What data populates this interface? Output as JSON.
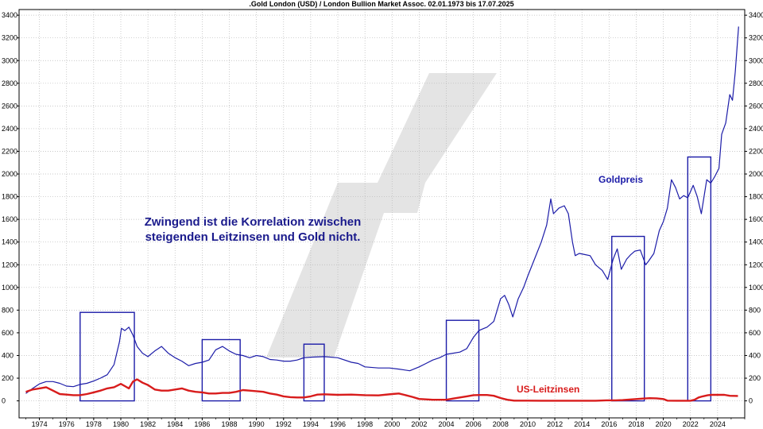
{
  "chart_data": {
    "type": "line",
    "title": ".Gold London (USD) / London Bullion Market Assoc. 02.01.1973 bis 17.07.2025",
    "xlim": [
      1972.5,
      2026.0
    ],
    "ylim": [
      -150,
      3450
    ],
    "yticks": [
      0,
      200,
      400,
      600,
      800,
      1000,
      1200,
      1400,
      1600,
      1800,
      2000,
      2200,
      2400,
      2600,
      2800,
      3000,
      3200,
      3400
    ],
    "xticks": [
      1974,
      1976,
      1978,
      1980,
      1982,
      1984,
      1986,
      1988,
      1990,
      1992,
      1994,
      1996,
      1998,
      2000,
      2002,
      2004,
      2006,
      2008,
      2010,
      2012,
      2014,
      2016,
      2018,
      2020,
      2022,
      2024
    ],
    "grid": true,
    "annotation": [
      "Zwingend ist die Korrelation zwischen",
      "steigenden Leitzinsen und Gold nicht."
    ],
    "series": [
      {
        "name": "Goldpreis",
        "color": "#1c1ca8",
        "x": [
          1973.0,
          1973.5,
          1974.0,
          1974.5,
          1975.0,
          1975.5,
          1976.0,
          1976.5,
          1977.0,
          1977.5,
          1978.0,
          1978.5,
          1979.0,
          1979.5,
          1979.9,
          1980.05,
          1980.3,
          1980.6,
          1980.9,
          1981.2,
          1981.6,
          1982.0,
          1982.5,
          1983.0,
          1983.5,
          1984.0,
          1984.5,
          1985.0,
          1985.5,
          1986.0,
          1986.5,
          1987.0,
          1987.5,
          1988.0,
          1988.5,
          1989.0,
          1989.5,
          1990.0,
          1990.5,
          1991.0,
          1991.5,
          1992.0,
          1992.5,
          1993.0,
          1993.5,
          1994.0,
          1995.0,
          1996.0,
          1997.0,
          1997.5,
          1998.0,
          1999.0,
          1999.8,
          2000.5,
          2001.3,
          2002.0,
          2002.5,
          2003.0,
          2003.5,
          2004.0,
          2004.5,
          2005.0,
          2005.5,
          2006.0,
          2006.4,
          2006.8,
          2007.0,
          2007.5,
          2008.0,
          2008.3,
          2008.6,
          2008.9,
          2009.3,
          2009.7,
          2010.0,
          2010.5,
          2011.0,
          2011.4,
          2011.7,
          2011.9,
          2012.3,
          2012.7,
          2013.0,
          2013.3,
          2013.5,
          2013.8,
          2014.2,
          2014.6,
          2015.0,
          2015.5,
          2015.9,
          2016.3,
          2016.6,
          2016.9,
          2017.3,
          2017.6,
          2017.9,
          2018.3,
          2018.7,
          2018.9,
          2019.3,
          2019.7,
          2020.0,
          2020.3,
          2020.6,
          2020.9,
          2021.2,
          2021.5,
          2021.8,
          2022.2,
          2022.5,
          2022.8,
          2023.2,
          2023.5,
          2023.8,
          2024.1,
          2024.3,
          2024.6,
          2024.9,
          2025.1,
          2025.3,
          2025.55
        ],
        "values": [
          65,
          110,
          150,
          170,
          170,
          155,
          130,
          125,
          145,
          155,
          175,
          200,
          230,
          320,
          520,
          640,
          620,
          650,
          580,
          480,
          420,
          390,
          440,
          480,
          420,
          380,
          350,
          310,
          330,
          340,
          360,
          450,
          480,
          440,
          410,
          400,
          380,
          400,
          390,
          365,
          360,
          350,
          350,
          360,
          380,
          385,
          390,
          380,
          340,
          330,
          300,
          290,
          290,
          280,
          265,
          300,
          330,
          360,
          380,
          410,
          420,
          430,
          460,
          560,
          620,
          640,
          650,
          700,
          900,
          930,
          850,
          740,
          900,
          1000,
          1100,
          1250,
          1400,
          1550,
          1780,
          1650,
          1700,
          1720,
          1650,
          1400,
          1280,
          1300,
          1290,
          1280,
          1200,
          1150,
          1070,
          1250,
          1340,
          1160,
          1250,
          1290,
          1320,
          1330,
          1200,
          1230,
          1300,
          1500,
          1580,
          1700,
          1950,
          1880,
          1780,
          1810,
          1790,
          1900,
          1800,
          1650,
          1950,
          1920,
          1980,
          2050,
          2350,
          2450,
          2700,
          2650,
          2900,
          3300
        ]
      },
      {
        "name": "US-Leitzinsen",
        "color": "#d81c1c",
        "x": [
          1973.0,
          1973.5,
          1974.0,
          1974.5,
          1975.0,
          1975.5,
          1976.0,
          1976.5,
          1977.0,
          1977.5,
          1978.0,
          1978.5,
          1979.0,
          1979.5,
          1980.0,
          1980.3,
          1980.6,
          1980.9,
          1981.2,
          1981.6,
          1982.0,
          1982.5,
          1983.0,
          1983.5,
          1984.0,
          1984.5,
          1985.0,
          1985.5,
          1986.0,
          1986.5,
          1987.0,
          1987.5,
          1988.0,
          1988.5,
          1989.0,
          1989.5,
          1990.0,
          1990.5,
          1991.0,
          1991.5,
          1992.0,
          1992.5,
          1993.0,
          1993.5,
          1994.0,
          1994.5,
          1995.0,
          1996.0,
          1997.0,
          1998.0,
          1999.0,
          2000.0,
          2000.5,
          2001.0,
          2001.5,
          2002.0,
          2003.0,
          2004.0,
          2004.5,
          2005.0,
          2005.5,
          2006.0,
          2006.5,
          2007.0,
          2007.5,
          2008.0,
          2008.5,
          2009.0,
          2010.0,
          2011.0,
          2012.0,
          2013.0,
          2014.0,
          2015.0,
          2015.9,
          2016.5,
          2017.0,
          2017.5,
          2018.0,
          2018.5,
          2019.0,
          2019.5,
          2020.0,
          2020.3,
          2021.0,
          2022.0,
          2022.3,
          2022.6,
          2022.9,
          2023.3,
          2023.6,
          2024.0,
          2024.5,
          2024.9,
          2025.5
        ],
        "values": [
          80,
          100,
          110,
          120,
          90,
          60,
          55,
          50,
          50,
          60,
          75,
          90,
          110,
          120,
          150,
          130,
          110,
          170,
          190,
          160,
          140,
          100,
          90,
          90,
          100,
          110,
          90,
          80,
          75,
          65,
          65,
          70,
          70,
          80,
          95,
          90,
          85,
          80,
          65,
          55,
          40,
          33,
          30,
          30,
          40,
          55,
          58,
          53,
          55,
          50,
          48,
          60,
          65,
          50,
          35,
          17,
          10,
          10,
          20,
          30,
          40,
          50,
          52,
          52,
          45,
          25,
          10,
          2,
          2,
          1,
          1,
          1,
          1,
          1,
          5,
          5,
          7,
          11,
          16,
          20,
          24,
          22,
          16,
          2,
          1,
          1,
          10,
          30,
          40,
          50,
          53,
          53,
          53,
          45,
          43
        ]
      }
    ],
    "highlight_boxes": [
      {
        "x0": 1977.0,
        "x1": 1981.0,
        "y0": 0,
        "y1": 780
      },
      {
        "x0": 1986.0,
        "x1": 1988.8,
        "y0": 0,
        "y1": 540
      },
      {
        "x0": 1993.5,
        "x1": 1995.0,
        "y0": 0,
        "y1": 500
      },
      {
        "x0": 2004.0,
        "x1": 2006.4,
        "y0": 0,
        "y1": 710
      },
      {
        "x0": 2016.2,
        "x1": 2018.6,
        "y0": 0,
        "y1": 1450
      },
      {
        "x0": 2021.8,
        "x1": 2023.5,
        "y0": 0,
        "y1": 2150
      }
    ]
  }
}
